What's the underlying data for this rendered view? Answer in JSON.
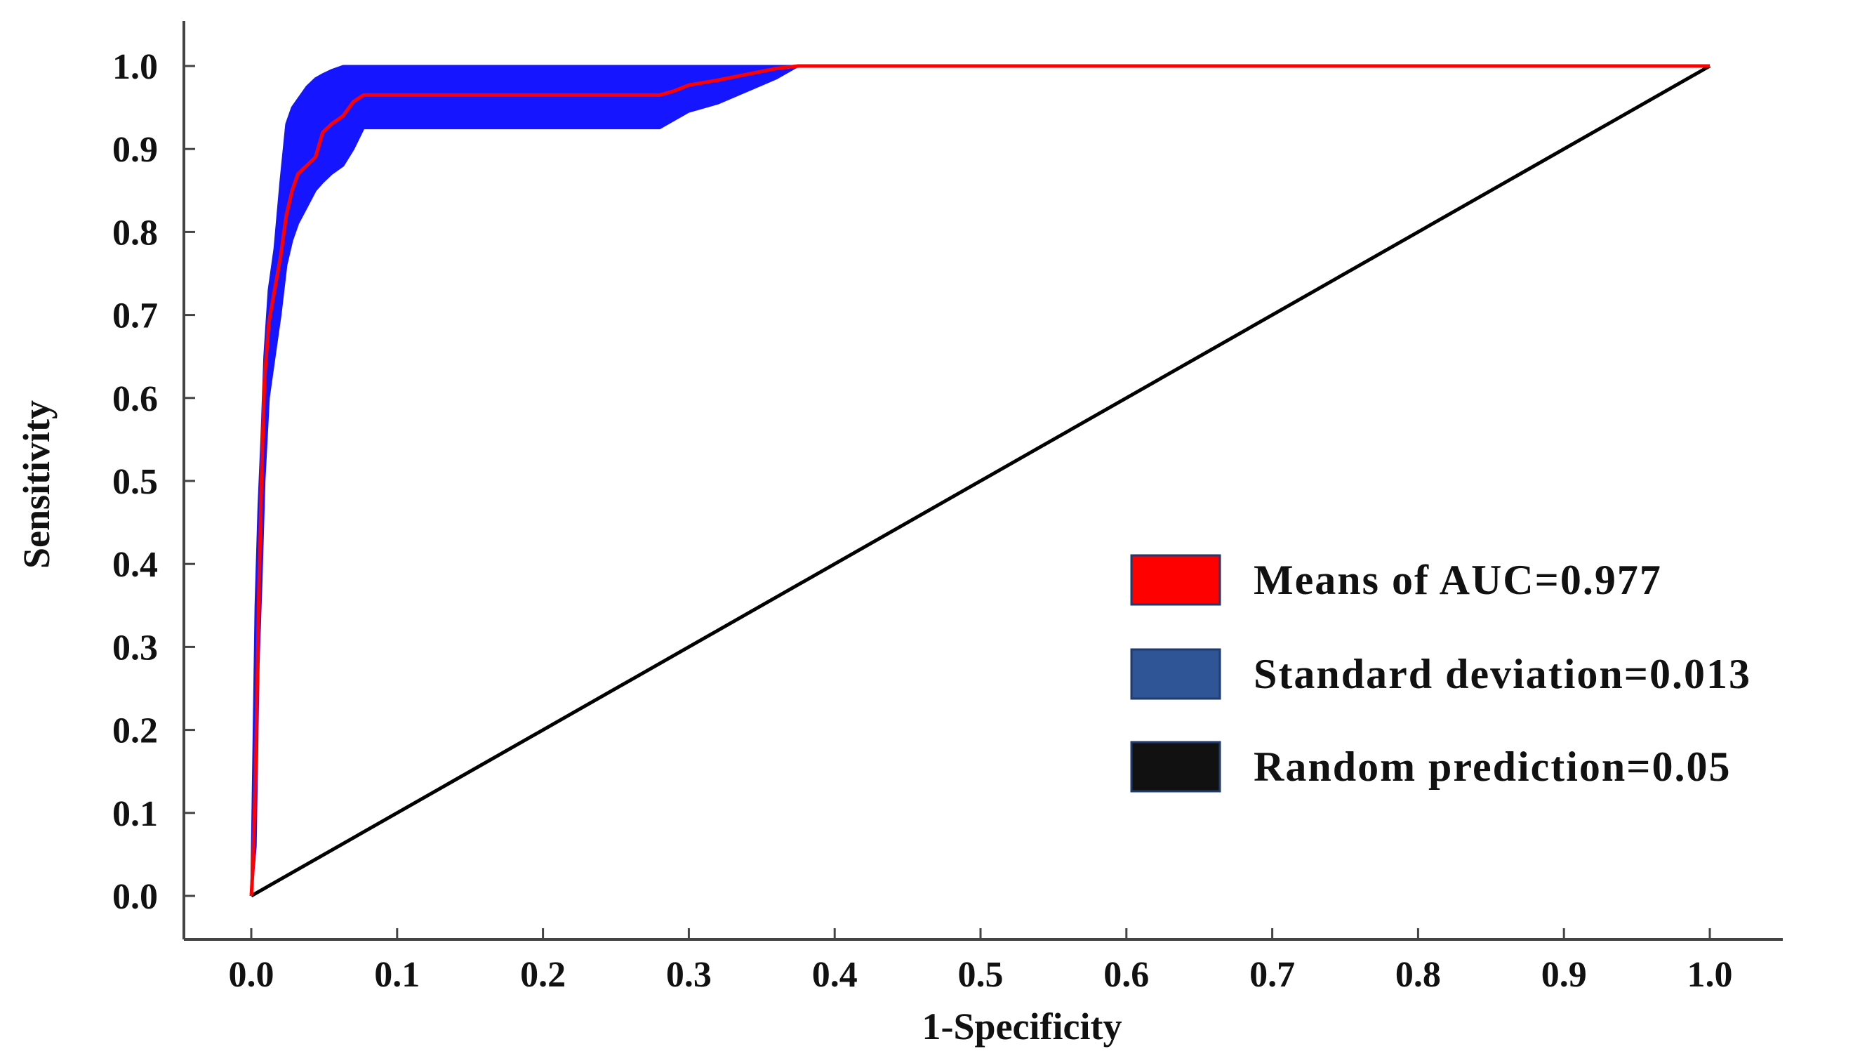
{
  "chart_data": {
    "type": "line",
    "title": "",
    "xlabel": "1-Specificity",
    "ylabel": "Sensitivity",
    "xlim": [
      0.0,
      1.0
    ],
    "ylim": [
      0.0,
      1.0
    ],
    "grid": false,
    "legend_position": "bottom-right",
    "x_ticks": [
      "0.0",
      "0.1",
      "0.2",
      "0.3",
      "0.4",
      "0.5",
      "0.6",
      "0.7",
      "0.8",
      "0.9",
      "1.0"
    ],
    "y_ticks": [
      "0.0",
      "0.1",
      "0.2",
      "0.3",
      "0.4",
      "0.5",
      "0.6",
      "0.7",
      "0.8",
      "0.9",
      "1.0"
    ],
    "series": [
      {
        "name": "Means of AUC=0.977",
        "kind": "mean-roc",
        "color": "#ff0000",
        "x": [
          0.0,
          0.001,
          0.003,
          0.005,
          0.007,
          0.009,
          0.012,
          0.016,
          0.02,
          0.024,
          0.028,
          0.032,
          0.038,
          0.044,
          0.049,
          0.055,
          0.063,
          0.07,
          0.077,
          0.085,
          0.12,
          0.2,
          0.28,
          0.29,
          0.3,
          0.32,
          0.34,
          0.36,
          0.375,
          0.5,
          0.7,
          1.0
        ],
        "y": [
          0.0,
          0.03,
          0.15,
          0.35,
          0.5,
          0.62,
          0.69,
          0.73,
          0.77,
          0.82,
          0.85,
          0.87,
          0.88,
          0.89,
          0.92,
          0.93,
          0.94,
          0.957,
          0.965,
          0.965,
          0.965,
          0.965,
          0.965,
          0.97,
          0.977,
          0.983,
          0.99,
          0.997,
          1.0,
          1.0,
          1.0,
          1.0
        ]
      },
      {
        "name": "Standard deviation=0.013",
        "kind": "std-band",
        "color": "#1515ff",
        "x": [
          0.0,
          0.003,
          0.005,
          0.007,
          0.009,
          0.012,
          0.016,
          0.02,
          0.024,
          0.028,
          0.032,
          0.038,
          0.044,
          0.049,
          0.055,
          0.063,
          0.07,
          0.077,
          0.085,
          0.12,
          0.2,
          0.28,
          0.29,
          0.3,
          0.32,
          0.34,
          0.36,
          0.375,
          0.5,
          1.0
        ],
        "upper": [
          0.0,
          0.35,
          0.47,
          0.55,
          0.65,
          0.73,
          0.78,
          0.86,
          0.93,
          0.95,
          0.96,
          0.975,
          0.985,
          0.99,
          0.995,
          1.0,
          1.0,
          1.0,
          1.0,
          1.0,
          1.0,
          1.0,
          1.0,
          1.0,
          1.0,
          1.0,
          1.0,
          1.0,
          1.0,
          1.0
        ],
        "lower": [
          0.0,
          0.06,
          0.28,
          0.38,
          0.5,
          0.6,
          0.65,
          0.7,
          0.76,
          0.79,
          0.81,
          0.83,
          0.85,
          0.86,
          0.87,
          0.88,
          0.9,
          0.925,
          0.925,
          0.925,
          0.925,
          0.925,
          0.935,
          0.945,
          0.955,
          0.97,
          0.985,
          1.0,
          1.0,
          1.0
        ]
      },
      {
        "name": "Random prediction=0.05",
        "kind": "diagonal",
        "color": "#000000",
        "x": [
          0.0,
          1.0
        ],
        "y": [
          0.0,
          1.0
        ]
      }
    ],
    "legend": [
      {
        "label": "Means of AUC=0.977",
        "color": "#ff0000"
      },
      {
        "label": "Standard deviation=0.013",
        "color": "#2f5597"
      },
      {
        "label": "Random prediction=0.05",
        "color": "#111111"
      }
    ]
  }
}
